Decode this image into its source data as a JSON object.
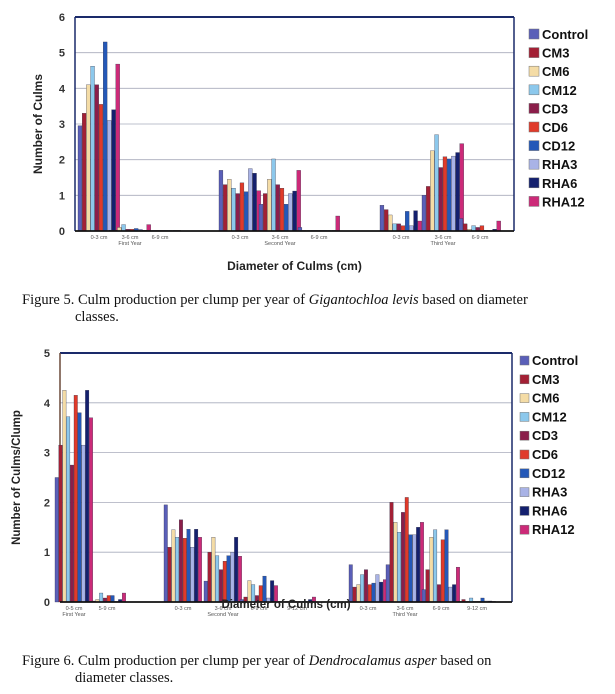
{
  "chart_data": [
    {
      "type": "bar",
      "title": "",
      "xlabel": "Diameter of Culms (cm)",
      "ylabel": "Number of Culms",
      "ylim": [
        0,
        6
      ],
      "yticks": [
        "0",
        "1",
        "2",
        "3",
        "4",
        "5",
        "6"
      ],
      "grid": true,
      "legend_position": "right",
      "categories": [
        "0-3 cm",
        "3-6 cm",
        "6-9 cm",
        "0-3 cm",
        "3-6 cm",
        "6-9 cm",
        "0-3 cm",
        "3-6 cm",
        "6-9 cm"
      ],
      "year_labels": [
        {
          "label": "First Year",
          "category_index": 1
        },
        {
          "label": "Second Year",
          "category_index": 4
        },
        {
          "label": "Third Year",
          "category_index": 7
        }
      ],
      "series": [
        {
          "name": "Control",
          "color": "#5a5fb8",
          "values": [
            2.95,
            0.02,
            0.0,
            1.7,
            0.75,
            0.1,
            0.72,
            1.0,
            0.35
          ]
        },
        {
          "name": "CM3",
          "color": "#a32035",
          "values": [
            3.3,
            0.02,
            0.0,
            1.3,
            1.05,
            0.0,
            0.6,
            1.25,
            0.2
          ]
        },
        {
          "name": "CM6",
          "color": "#f4dca6",
          "values": [
            4.1,
            0.1,
            0.0,
            1.45,
            1.45,
            0.0,
            0.45,
            2.25,
            0.05
          ]
        },
        {
          "name": "CM12",
          "color": "#8cc8ec",
          "values": [
            4.62,
            0.18,
            0.0,
            1.2,
            2.02,
            0.0,
            0.2,
            2.7,
            0.15
          ]
        },
        {
          "name": "CD3",
          "color": "#8b1e4a",
          "values": [
            4.1,
            0.05,
            0.0,
            1.05,
            1.3,
            0.0,
            0.2,
            1.78,
            0.1
          ]
        },
        {
          "name": "CD6",
          "color": "#e03a2a",
          "values": [
            3.55,
            0.05,
            0.0,
            1.35,
            1.2,
            0.0,
            0.15,
            2.08,
            0.15
          ]
        },
        {
          "name": "CD12",
          "color": "#2458b8",
          "values": [
            5.3,
            0.07,
            0.0,
            1.1,
            0.75,
            0.0,
            0.55,
            2.02,
            0.02
          ]
        },
        {
          "name": "RHA3",
          "color": "#a9b3e6",
          "values": [
            3.1,
            0.05,
            0.0,
            1.75,
            1.05,
            0.0,
            0.15,
            2.1,
            0.0
          ]
        },
        {
          "name": "RHA6",
          "color": "#14206e",
          "values": [
            3.4,
            0.02,
            0.0,
            1.62,
            1.12,
            0.0,
            0.57,
            2.2,
            0.05
          ]
        },
        {
          "name": "RHA12",
          "color": "#cc2a78",
          "values": [
            4.68,
            0.18,
            0.0,
            1.13,
            1.7,
            0.42,
            0.28,
            2.45,
            0.28
          ]
        }
      ]
    },
    {
      "type": "bar",
      "title": "",
      "xlabel": "Diameter of Culms (cm)",
      "ylabel": "Number of Culms/Clump",
      "ylim": [
        0,
        5
      ],
      "yticks": [
        "0",
        "1",
        "2",
        "3",
        "4",
        "5"
      ],
      "grid": true,
      "legend_position": "right",
      "categories": [
        "0-5 cm",
        "5-9 cm",
        "0-3 cm",
        "3-6 cm",
        "6-9 cm",
        "9-12 cm",
        "0-3 cm",
        "3-6 cm",
        "6-9 cm",
        "9-12 cm"
      ],
      "year_labels": [
        {
          "label": "First Year",
          "category_index": 0
        },
        {
          "label": "Second Year",
          "category_index": 3
        },
        {
          "label": "Third Year",
          "category_index": 7
        }
      ],
      "series": [
        {
          "name": "Control",
          "color": "#5a5fb8",
          "values": [
            2.5,
            0.0,
            1.95,
            0.42,
            0.05,
            0.0,
            0.75,
            0.75,
            0.25,
            0.0
          ]
        },
        {
          "name": "CM3",
          "color": "#a32035",
          "values": [
            3.15,
            0.02,
            1.1,
            1.0,
            0.1,
            0.0,
            0.3,
            2.0,
            0.65,
            0.05
          ]
        },
        {
          "name": "CM6",
          "color": "#f4dca6",
          "values": [
            4.25,
            0.05,
            1.45,
            1.3,
            0.43,
            0.0,
            0.35,
            1.6,
            1.3,
            0.0
          ]
        },
        {
          "name": "CM12",
          "color": "#8cc8ec",
          "values": [
            3.72,
            0.18,
            1.3,
            0.93,
            0.35,
            0.02,
            0.55,
            1.4,
            1.45,
            0.08
          ]
        },
        {
          "name": "CD3",
          "color": "#8b1e4a",
          "values": [
            2.75,
            0.08,
            1.65,
            0.65,
            0.13,
            0.0,
            0.65,
            1.8,
            0.35,
            0.0
          ]
        },
        {
          "name": "CD6",
          "color": "#e03a2a",
          "values": [
            4.15,
            0.13,
            1.28,
            0.82,
            0.33,
            0.0,
            0.35,
            2.1,
            1.25,
            0.0
          ]
        },
        {
          "name": "CD12",
          "color": "#2458b8",
          "values": [
            3.8,
            0.13,
            1.46,
            0.93,
            0.52,
            0.0,
            0.38,
            1.35,
            1.45,
            0.08
          ]
        },
        {
          "name": "RHA3",
          "color": "#a9b3e6",
          "values": [
            3.15,
            0.0,
            1.1,
            1.0,
            0.08,
            0.0,
            0.55,
            1.35,
            0.3,
            0.02
          ]
        },
        {
          "name": "RHA6",
          "color": "#14206e",
          "values": [
            4.25,
            0.05,
            1.46,
            1.3,
            0.43,
            0.05,
            0.4,
            1.5,
            0.35,
            0.02
          ]
        },
        {
          "name": "RHA12",
          "color": "#cc2a78",
          "values": [
            3.7,
            0.18,
            1.3,
            0.92,
            0.33,
            0.1,
            0.45,
            1.6,
            0.7,
            0.0
          ]
        }
      ]
    }
  ],
  "captions": {
    "figure5": {
      "prefix": "Figure 5. Culm production per clump per year of ",
      "species": "Gigantochloa levis",
      "suffix": " based on diameter",
      "line2": "classes."
    },
    "figure6": {
      "prefix": "Figure 6. Culm production per clump per year of ",
      "species": "Dendrocalamus asper",
      "suffix": " based on",
      "line2": "diameter classes."
    }
  }
}
